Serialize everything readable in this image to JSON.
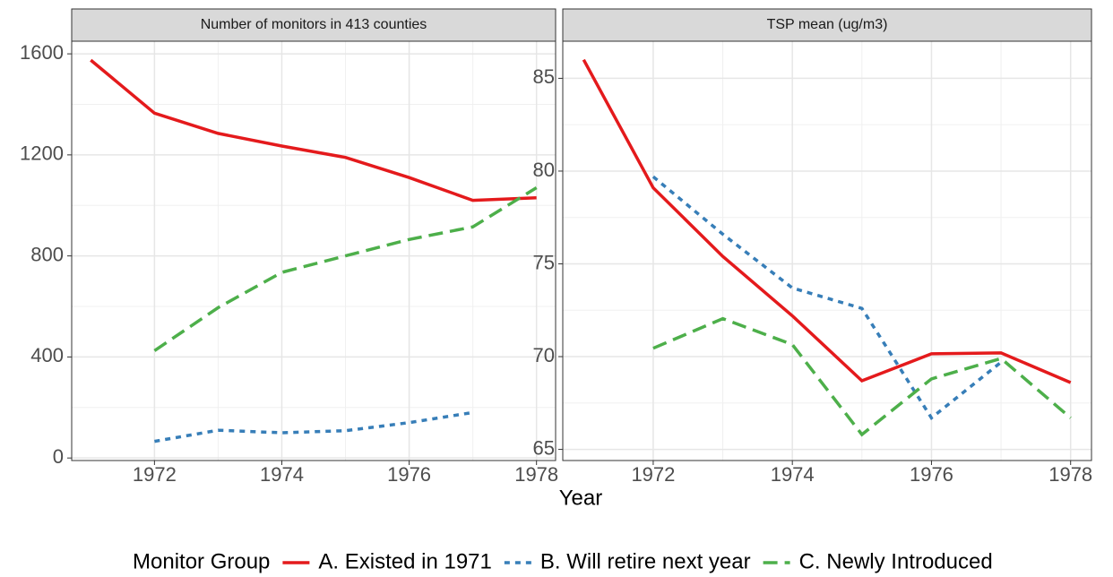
{
  "chart_data": [
    {
      "type": "line",
      "title": "Number of monitors in 413 counties",
      "x": [
        1971,
        1972,
        1973,
        1974,
        1975,
        1976,
        1977,
        1978
      ],
      "xlim": [
        1970.7,
        1978.3
      ],
      "xticks": [
        1972,
        1974,
        1976,
        1978
      ],
      "ylim": [
        -10,
        1650
      ],
      "yticks": [
        0,
        400,
        800,
        1200,
        1600
      ],
      "grid": true,
      "minor_grid": true,
      "series": [
        {
          "name": "A. Existed in 1971",
          "color": "#e41a1c",
          "linetype": "solid",
          "values": [
            1575,
            1365,
            1285,
            1235,
            1190,
            1110,
            1020,
            1030
          ]
        },
        {
          "name": "B. Will retire next year",
          "color": "#377eb8",
          "linetype": "dotted",
          "values": [
            null,
            66,
            110,
            100,
            108,
            140,
            180,
            null
          ]
        },
        {
          "name": "C. Newly Introduced",
          "color": "#4daf4a",
          "linetype": "dashed",
          "values": [
            null,
            425,
            595,
            735,
            800,
            865,
            915,
            1070
          ]
        }
      ]
    },
    {
      "type": "line",
      "title": "TSP mean (ug/m3)",
      "x": [
        1971,
        1972,
        1973,
        1974,
        1975,
        1976,
        1977,
        1978
      ],
      "xlim": [
        1970.7,
        1978.3
      ],
      "xticks": [
        1972,
        1974,
        1976,
        1978
      ],
      "ylim": [
        64.4,
        87.0
      ],
      "yticks": [
        65,
        70,
        75,
        80,
        85
      ],
      "grid": true,
      "minor_grid": true,
      "series": [
        {
          "name": "A. Existed in 1971",
          "color": "#e41a1c",
          "linetype": "solid",
          "values": [
            86,
            79.1,
            75.4,
            72.2,
            68.7,
            70.15,
            70.2,
            68.6
          ]
        },
        {
          "name": "B. Will retire next year",
          "color": "#377eb8",
          "linetype": "dotted",
          "values": [
            null,
            79.7,
            76.6,
            73.7,
            72.6,
            66.7,
            69.7,
            null
          ]
        },
        {
          "name": "C. Newly Introduced",
          "color": "#4daf4a",
          "linetype": "dashed",
          "values": [
            null,
            70.45,
            72.05,
            70.65,
            65.8,
            68.8,
            69.9,
            66.7
          ]
        }
      ]
    }
  ],
  "x_label": "Year",
  "legend_title": "Monitor Group"
}
